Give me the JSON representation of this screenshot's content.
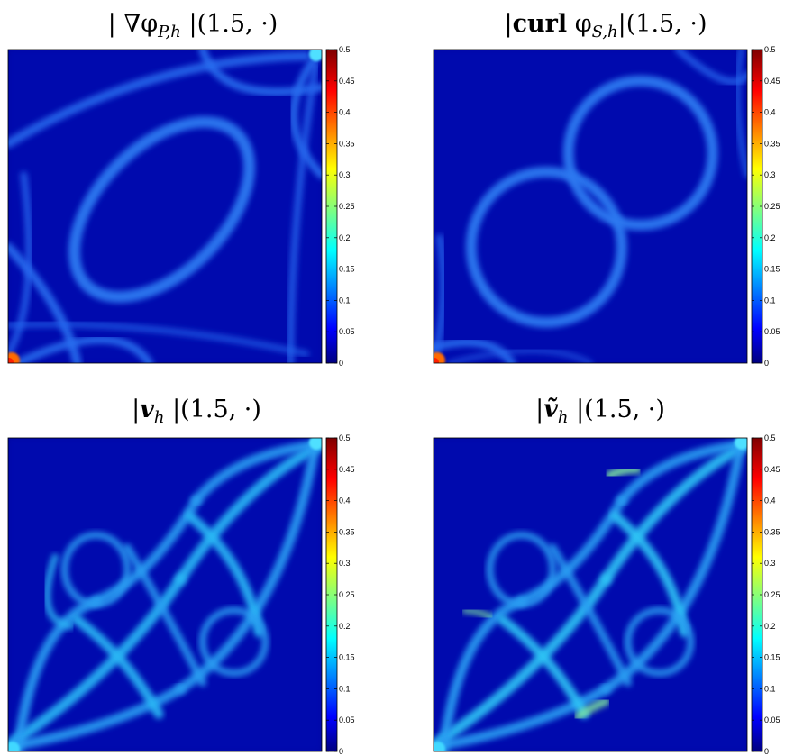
{
  "chart_data": [
    {
      "type": "heatmap",
      "title": "| ∇φ_{P,h} |(1.5, ·)",
      "title_parts": [
        {
          "t": "| ∇φ",
          "s": "n"
        },
        {
          "t": "P,h",
          "s": "sub"
        },
        {
          "t": " |(1.5, ·)",
          "s": "n"
        }
      ],
      "pattern": "grad_phi_P",
      "colorbar": {
        "vmin": 0,
        "vmax": 0.5,
        "ticks": [
          "0.5",
          "0.45",
          "0.4",
          "0.35",
          "0.3",
          "0.25",
          "0.2",
          "0.15",
          "0.1",
          "0.05",
          "0"
        ]
      }
    },
    {
      "type": "heatmap",
      "title": "|curl φ_{S,h}|(1.5, ·)",
      "title_parts": [
        {
          "t": "|",
          "s": "n"
        },
        {
          "t": "curl",
          "s": "b"
        },
        {
          "t": " φ",
          "s": "n"
        },
        {
          "t": "S,h",
          "s": "sub"
        },
        {
          "t": "|(1.5, ·)",
          "s": "n"
        }
      ],
      "pattern": "curl_phi_S",
      "colorbar": {
        "vmin": 0,
        "vmax": 0.5,
        "ticks": [
          "0.5",
          "0.45",
          "0.4",
          "0.35",
          "0.3",
          "0.25",
          "0.2",
          "0.15",
          "0.1",
          "0.05",
          "0"
        ]
      }
    },
    {
      "type": "heatmap",
      "title": "|v_h |(1.5, ·)",
      "title_parts": [
        {
          "t": "|",
          "s": "n"
        },
        {
          "t": "v",
          "s": "bi"
        },
        {
          "t": "h",
          "s": "sub"
        },
        {
          "t": " |(1.5, ·)",
          "s": "n"
        }
      ],
      "pattern": "v_h",
      "colorbar": {
        "vmin": 0,
        "vmax": 0.5,
        "ticks": [
          "0.5",
          "0.45",
          "0.4",
          "0.35",
          "0.3",
          "0.25",
          "0.2",
          "0.15",
          "0.1",
          "0.05",
          "0"
        ]
      }
    },
    {
      "type": "heatmap",
      "title": "|ṽ_h |(1.5, ·)",
      "title_parts": [
        {
          "t": "|",
          "s": "n"
        },
        {
          "t": "ṽ",
          "s": "bi"
        },
        {
          "t": "h",
          "s": "sub"
        },
        {
          "t": " |(1.5, ·)",
          "s": "n"
        }
      ],
      "pattern": "v_tilde_h",
      "colorbar": {
        "vmin": 0,
        "vmax": 0.5,
        "ticks": [
          "0.5",
          "0.45",
          "0.4",
          "0.35",
          "0.3",
          "0.25",
          "0.2",
          "0.15",
          "0.1",
          "0.05",
          "0"
        ]
      }
    }
  ]
}
